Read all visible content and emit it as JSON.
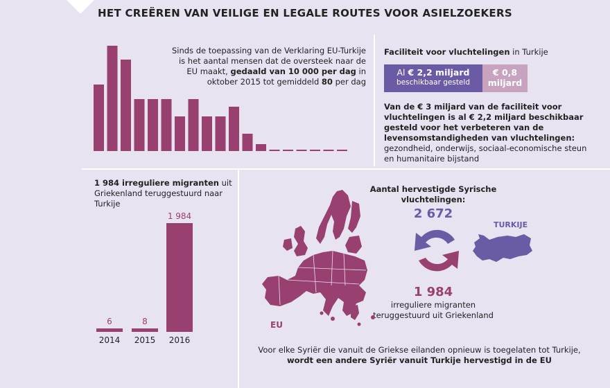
{
  "title": "HET CREËREN VAN VEILIGE EN LEGALE ROUTES VOOR ASIELZOEKERS",
  "crossings": {
    "text_parts": [
      "Sinds de toepassing van de Verklaring EU-Turkije is het aantal mensen dat de oversteek naar de EU maakt, ",
      "gedaald van 10 000 per dag",
      " in oktober 2015 tot gemiddeld ",
      "80",
      " per dag"
    ]
  },
  "facility": {
    "heading_bold": "Faciliteit voor vluchtelingen",
    "heading_rest": " in Turkije",
    "box1_prefix": "Al ",
    "box1_amount": "€ 2,2 miljard",
    "box1_sub": "beschikbaar gesteld",
    "box2_line1": "€ 0,8",
    "box2_line2": "miljard",
    "desc_bold": "Van de € 3 miljard van de faciliteit voor vluchtelingen is al € 2,2 miljard beschikbaar gesteld voor het verbeteren van de levensomstandigheden van vluchtelingen:",
    "desc_rest": " gezondheid, onderwijs, sociaal-economische steun en humanitaire bijstand",
    "colors": {
      "available": "#6b5ba5",
      "remaining": "#c8a3bf"
    }
  },
  "returns": {
    "heading_bold": "1 984 irreguliere migranten",
    "heading_rest": " uit Griekenland teruggestuurd naar Turkije"
  },
  "resettle": {
    "heading": "Aantal hervestigde Syrische vluchtelingen:",
    "resettled_value": "2 672",
    "returned_value": "1 984",
    "returned_caption": "irreguliere migranten teruggestuurd uit Griekenland",
    "eu_label": "EU",
    "turkey_label": "TURKIJE",
    "note_rest": "Voor elke Syriër die vanuit de Griekse eilanden opnieuw is toegelaten tot Turkije, ",
    "note_bold": "wordt een andere Syriër vanuit Turkije hervestigd in de EU",
    "icons": {
      "arrows": "cycle-arrows-icon",
      "eu_map": "eu-map-icon",
      "turkey_map": "turkey-map-icon"
    },
    "colors": {
      "resettled": "#6b5ba5",
      "returned": "#98406f"
    }
  },
  "chart_data": [
    {
      "type": "bar",
      "values": [
        96,
        152,
        132,
        75,
        75,
        75,
        50,
        75,
        50,
        50,
        64,
        25,
        10,
        2,
        2,
        2,
        2,
        2,
        2
      ],
      "color": "#98406f",
      "grid": false
    },
    {
      "type": "bar",
      "categories": [
        "2014",
        "2015",
        "2016"
      ],
      "values": [
        6,
        8,
        1984
      ],
      "labels": [
        "6",
        "8",
        "1 984"
      ],
      "color": "#98406f",
      "grid": false
    }
  ]
}
